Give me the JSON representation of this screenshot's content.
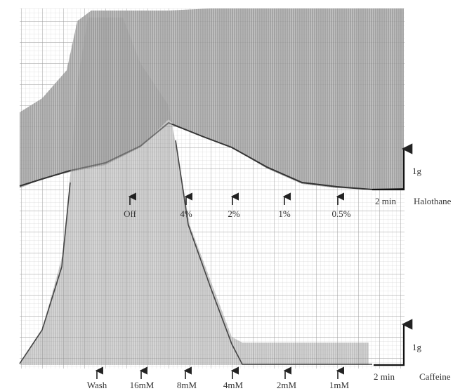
{
  "halothane": {
    "label": "Halothane",
    "scale_force": "1g",
    "scale_time": "2 min",
    "doses": [
      "Off",
      "4%",
      "2%",
      "1%",
      "0.5%"
    ]
  },
  "caffeine": {
    "label": "Caffeine",
    "scale_force": "1g",
    "scale_time": "2 min",
    "doses": [
      "Wash",
      "16mM",
      "8mM",
      "4mM",
      "2mM",
      "1mM"
    ]
  }
}
